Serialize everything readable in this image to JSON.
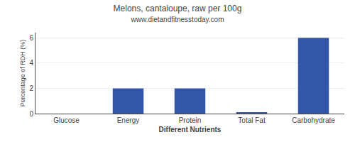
{
  "chart_data": {
    "type": "bar",
    "title": "Melons, cantaloupe, raw per 100g",
    "subtitle": "www.dietandfitnesstoday.com",
    "categories": [
      "Glucose",
      "Energy",
      "Protein",
      "Total Fat",
      "Carbohydrate"
    ],
    "values": [
      0.0,
      2.0,
      2.0,
      0.1,
      6.0
    ],
    "color": "#3355aa",
    "xlabel": "Different Nutrients",
    "ylabel": "Percentage of RDH (%)",
    "ylim": [
      0,
      6.4
    ],
    "yticks": [
      0,
      2,
      4,
      6
    ],
    "grid": true
  }
}
